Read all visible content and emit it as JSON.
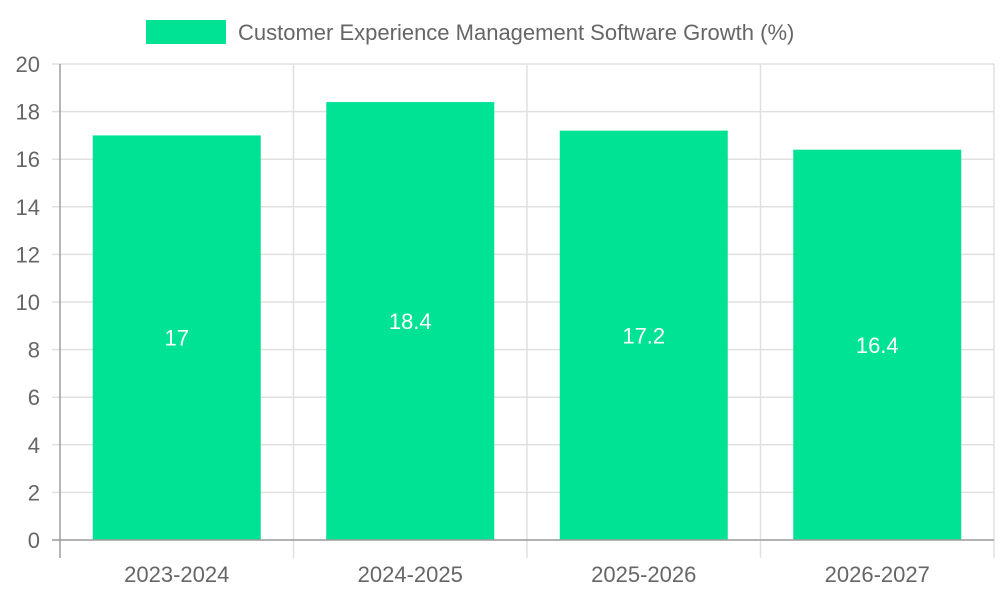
{
  "chart_data": {
    "type": "bar",
    "title": "",
    "xlabel": "",
    "ylabel": "",
    "categories": [
      "2023-2024",
      "2024-2025",
      "2025-2026",
      "2026-2027"
    ],
    "series": [
      {
        "name": "Customer Experience Management Software Growth (%)",
        "values": [
          17,
          18.4,
          17.2,
          16.4
        ],
        "color": "#00e394"
      }
    ],
    "value_labels": [
      "17",
      "18.4",
      "17.2",
      "16.4"
    ],
    "ylim": [
      0,
      20
    ],
    "yticks": [
      "0",
      "2",
      "4",
      "6",
      "8",
      "10",
      "12",
      "14",
      "16",
      "18",
      "20"
    ],
    "grid": true,
    "legend_position": "top-center"
  },
  "colors": {
    "bar": "#00e394",
    "grid": "#e0e0e0",
    "axis": "#9e9e9e",
    "text": "#666666",
    "label": "#ffffff"
  }
}
